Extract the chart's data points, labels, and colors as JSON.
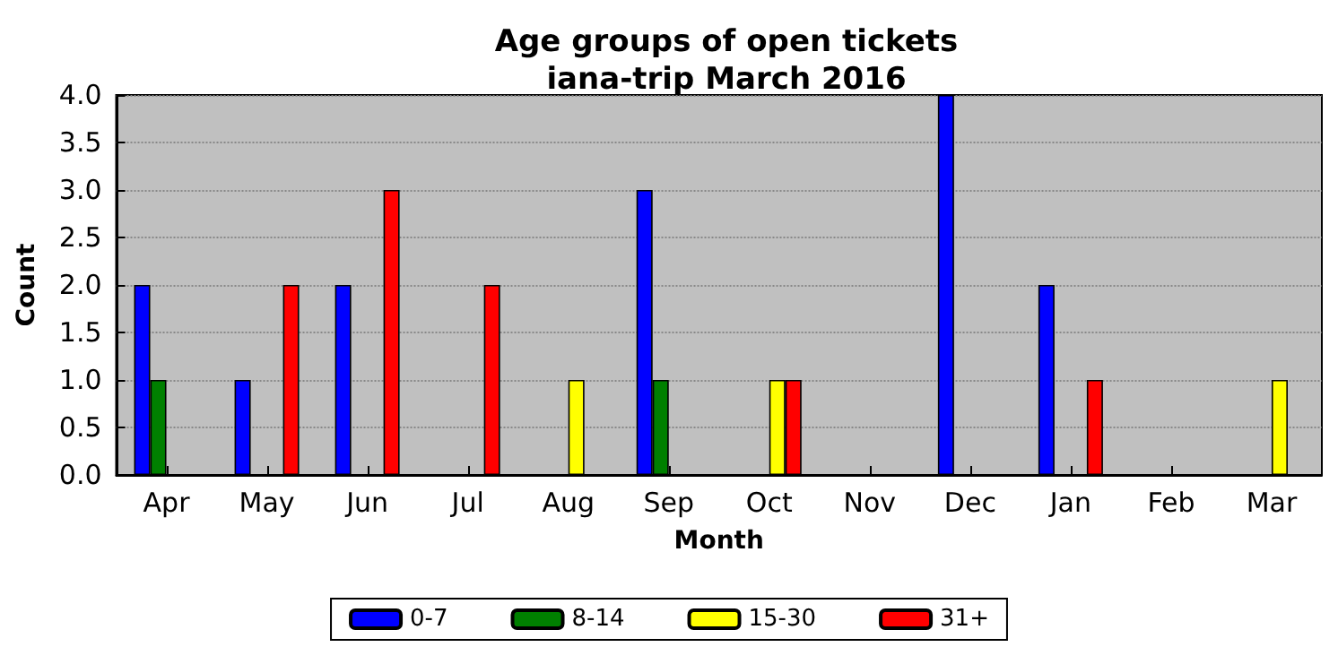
{
  "chart_data": {
    "type": "bar",
    "title": "Age groups of open tickets\niana-trip March 2016",
    "xlabel": "Month",
    "ylabel": "Count",
    "categories": [
      "Apr",
      "May",
      "Jun",
      "Jul",
      "Aug",
      "Sep",
      "Oct",
      "Nov",
      "Dec",
      "Jan",
      "Feb",
      "Mar"
    ],
    "series": [
      {
        "name": "0-7",
        "color": "#0000ff",
        "values": [
          2,
          1,
          2,
          0,
          0,
          3,
          0,
          0,
          4,
          2,
          0,
          0
        ]
      },
      {
        "name": "8-14",
        "color": "#008000",
        "values": [
          1,
          0,
          0,
          0,
          0,
          1,
          0,
          0,
          0,
          0,
          0,
          0
        ]
      },
      {
        "name": "15-30",
        "color": "#ffff00",
        "values": [
          0,
          0,
          0,
          0,
          1,
          0,
          1,
          0,
          0,
          0,
          0,
          1
        ]
      },
      {
        "name": "31+",
        "color": "#ff0000",
        "values": [
          0,
          2,
          3,
          2,
          0,
          0,
          1,
          0,
          0,
          1,
          0,
          0
        ]
      }
    ],
    "ylim": [
      0,
      4
    ],
    "yticks": [
      {
        "value": 0,
        "label": "0.0"
      },
      {
        "value": 0.5,
        "label": "0.5"
      },
      {
        "value": 1,
        "label": "1.0"
      },
      {
        "value": 1.5,
        "label": "1.5"
      },
      {
        "value": 2,
        "label": "2.0"
      },
      {
        "value": 2.5,
        "label": "2.5"
      },
      {
        "value": 3,
        "label": "3.0"
      },
      {
        "value": 3.5,
        "label": "3.5"
      },
      {
        "value": 4,
        "label": "4.0"
      }
    ],
    "grid": "y",
    "legend": "bottom"
  }
}
